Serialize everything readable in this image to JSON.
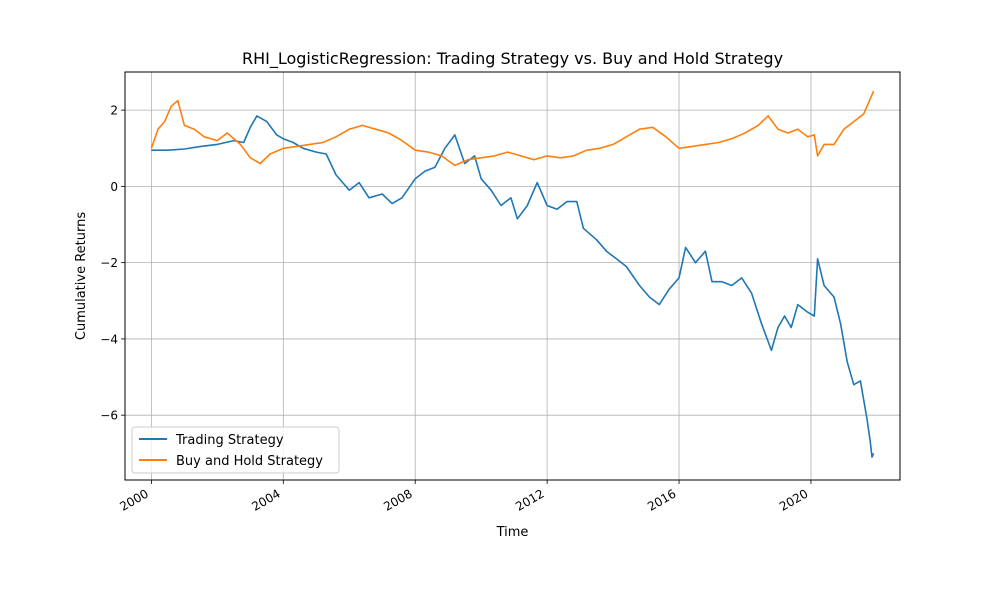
{
  "chart_data": {
    "type": "line",
    "title": "RHI_LogisticRegression: Trading Strategy vs. Buy and Hold Strategy",
    "xlabel": "Time",
    "ylabel": "Cumulative Returns",
    "xlim": [
      1999.2,
      2022.7
    ],
    "ylim": [
      -7.7,
      3.0
    ],
    "xticks": [
      2000,
      2004,
      2008,
      2012,
      2016,
      2020
    ],
    "xtick_labels": [
      "2000",
      "2004",
      "2008",
      "2012",
      "2016",
      "2020"
    ],
    "yticks": [
      2,
      0,
      -2,
      -4,
      -6
    ],
    "ytick_labels": [
      "2",
      "0",
      "−2",
      "−4",
      "−6"
    ],
    "grid": true,
    "legend_position": "lower-left",
    "series": [
      {
        "name": "Trading Strategy",
        "color": "#1f77b4",
        "points": [
          [
            2000.0,
            0.95
          ],
          [
            2000.5,
            0.95
          ],
          [
            2001.0,
            0.98
          ],
          [
            2001.5,
            1.05
          ],
          [
            2002.0,
            1.1
          ],
          [
            2002.5,
            1.2
          ],
          [
            2002.8,
            1.15
          ],
          [
            2003.0,
            1.55
          ],
          [
            2003.2,
            1.85
          ],
          [
            2003.5,
            1.7
          ],
          [
            2003.8,
            1.35
          ],
          [
            2004.0,
            1.25
          ],
          [
            2004.3,
            1.15
          ],
          [
            2004.6,
            1.0
          ],
          [
            2005.0,
            0.9
          ],
          [
            2005.3,
            0.85
          ],
          [
            2005.6,
            0.3
          ],
          [
            2006.0,
            -0.1
          ],
          [
            2006.3,
            0.1
          ],
          [
            2006.6,
            -0.3
          ],
          [
            2007.0,
            -0.2
          ],
          [
            2007.3,
            -0.45
          ],
          [
            2007.6,
            -0.3
          ],
          [
            2008.0,
            0.2
          ],
          [
            2008.3,
            0.4
          ],
          [
            2008.6,
            0.5
          ],
          [
            2008.9,
            1.0
          ],
          [
            2009.2,
            1.35
          ],
          [
            2009.5,
            0.6
          ],
          [
            2009.8,
            0.8
          ],
          [
            2010.0,
            0.2
          ],
          [
            2010.3,
            -0.1
          ],
          [
            2010.6,
            -0.5
          ],
          [
            2010.9,
            -0.3
          ],
          [
            2011.1,
            -0.85
          ],
          [
            2011.4,
            -0.5
          ],
          [
            2011.7,
            0.1
          ],
          [
            2012.0,
            -0.5
          ],
          [
            2012.3,
            -0.6
          ],
          [
            2012.6,
            -0.4
          ],
          [
            2012.9,
            -0.4
          ],
          [
            2013.1,
            -1.1
          ],
          [
            2013.5,
            -1.4
          ],
          [
            2013.8,
            -1.7
          ],
          [
            2014.1,
            -1.9
          ],
          [
            2014.4,
            -2.1
          ],
          [
            2014.8,
            -2.6
          ],
          [
            2015.1,
            -2.9
          ],
          [
            2015.4,
            -3.1
          ],
          [
            2015.7,
            -2.7
          ],
          [
            2016.0,
            -2.4
          ],
          [
            2016.2,
            -1.6
          ],
          [
            2016.5,
            -2.0
          ],
          [
            2016.8,
            -1.7
          ],
          [
            2017.0,
            -2.5
          ],
          [
            2017.3,
            -2.5
          ],
          [
            2017.6,
            -2.6
          ],
          [
            2017.9,
            -2.4
          ],
          [
            2018.2,
            -2.8
          ],
          [
            2018.5,
            -3.6
          ],
          [
            2018.8,
            -4.3
          ],
          [
            2019.0,
            -3.7
          ],
          [
            2019.2,
            -3.4
          ],
          [
            2019.4,
            -3.7
          ],
          [
            2019.6,
            -3.1
          ],
          [
            2019.9,
            -3.3
          ],
          [
            2020.1,
            -3.4
          ],
          [
            2020.2,
            -1.9
          ],
          [
            2020.4,
            -2.6
          ],
          [
            2020.7,
            -2.9
          ],
          [
            2020.9,
            -3.6
          ],
          [
            2021.1,
            -4.6
          ],
          [
            2021.3,
            -5.2
          ],
          [
            2021.5,
            -5.1
          ],
          [
            2021.7,
            -6.1
          ],
          [
            2021.8,
            -6.7
          ],
          [
            2021.85,
            -7.1
          ],
          [
            2021.9,
            -7.0
          ]
        ]
      },
      {
        "name": "Buy and Hold Strategy",
        "color": "#ff7f0e",
        "points": [
          [
            2000.0,
            1.0
          ],
          [
            2000.2,
            1.5
          ],
          [
            2000.4,
            1.7
          ],
          [
            2000.6,
            2.1
          ],
          [
            2000.8,
            2.25
          ],
          [
            2001.0,
            1.6
          ],
          [
            2001.3,
            1.5
          ],
          [
            2001.6,
            1.3
          ],
          [
            2002.0,
            1.2
          ],
          [
            2002.3,
            1.4
          ],
          [
            2002.7,
            1.1
          ],
          [
            2003.0,
            0.75
          ],
          [
            2003.3,
            0.6
          ],
          [
            2003.6,
            0.85
          ],
          [
            2004.0,
            1.0
          ],
          [
            2004.4,
            1.05
          ],
          [
            2004.8,
            1.1
          ],
          [
            2005.2,
            1.15
          ],
          [
            2005.6,
            1.3
          ],
          [
            2006.0,
            1.5
          ],
          [
            2006.4,
            1.6
          ],
          [
            2006.8,
            1.5
          ],
          [
            2007.2,
            1.4
          ],
          [
            2007.6,
            1.2
          ],
          [
            2008.0,
            0.95
          ],
          [
            2008.4,
            0.9
          ],
          [
            2008.8,
            0.8
          ],
          [
            2009.2,
            0.55
          ],
          [
            2009.6,
            0.7
          ],
          [
            2010.0,
            0.75
          ],
          [
            2010.4,
            0.8
          ],
          [
            2010.8,
            0.9
          ],
          [
            2011.2,
            0.8
          ],
          [
            2011.6,
            0.7
          ],
          [
            2012.0,
            0.8
          ],
          [
            2012.4,
            0.75
          ],
          [
            2012.8,
            0.8
          ],
          [
            2013.2,
            0.95
          ],
          [
            2013.6,
            1.0
          ],
          [
            2014.0,
            1.1
          ],
          [
            2014.4,
            1.3
          ],
          [
            2014.8,
            1.5
          ],
          [
            2015.2,
            1.55
          ],
          [
            2015.6,
            1.3
          ],
          [
            2016.0,
            1.0
          ],
          [
            2016.4,
            1.05
          ],
          [
            2016.8,
            1.1
          ],
          [
            2017.2,
            1.15
          ],
          [
            2017.6,
            1.25
          ],
          [
            2018.0,
            1.4
          ],
          [
            2018.4,
            1.6
          ],
          [
            2018.7,
            1.85
          ],
          [
            2019.0,
            1.5
          ],
          [
            2019.3,
            1.4
          ],
          [
            2019.6,
            1.5
          ],
          [
            2019.9,
            1.3
          ],
          [
            2020.1,
            1.35
          ],
          [
            2020.2,
            0.8
          ],
          [
            2020.4,
            1.1
          ],
          [
            2020.7,
            1.1
          ],
          [
            2021.0,
            1.5
          ],
          [
            2021.3,
            1.7
          ],
          [
            2021.6,
            1.9
          ],
          [
            2021.8,
            2.3
          ],
          [
            2021.9,
            2.5
          ]
        ]
      }
    ]
  }
}
